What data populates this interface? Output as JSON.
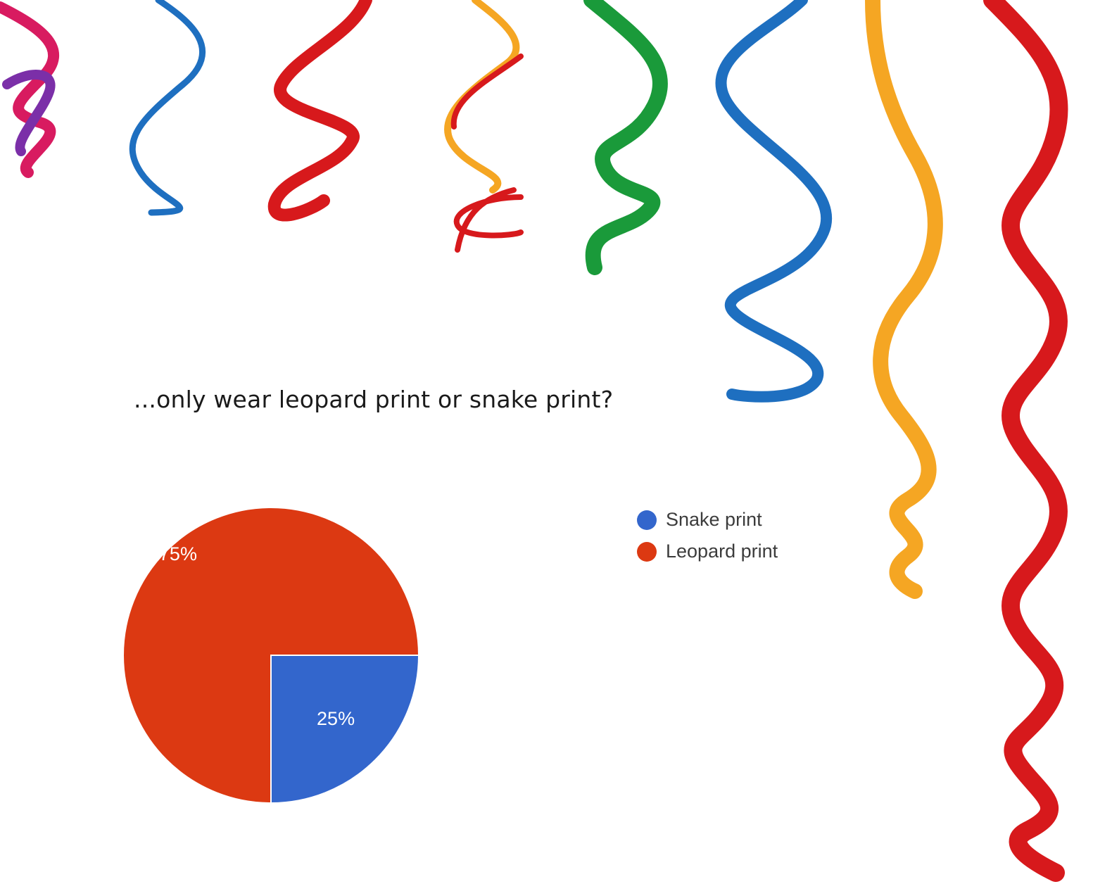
{
  "question": "...only wear leopard print or snake print?",
  "chart_data": {
    "type": "pie",
    "slices": [
      {
        "name": "Snake print",
        "value": 25,
        "label": "25%",
        "color": "#3366cc"
      },
      {
        "name": "Leopard print",
        "value": 75,
        "label": "75%",
        "color": "#dc3912"
      }
    ],
    "legend_position": "right"
  },
  "decoration": {
    "streamer_colors": [
      "#d81b60",
      "#1e6fc0",
      "#d7191c",
      "#f5a623",
      "#1a9a3a",
      "#7b2fa8"
    ]
  }
}
